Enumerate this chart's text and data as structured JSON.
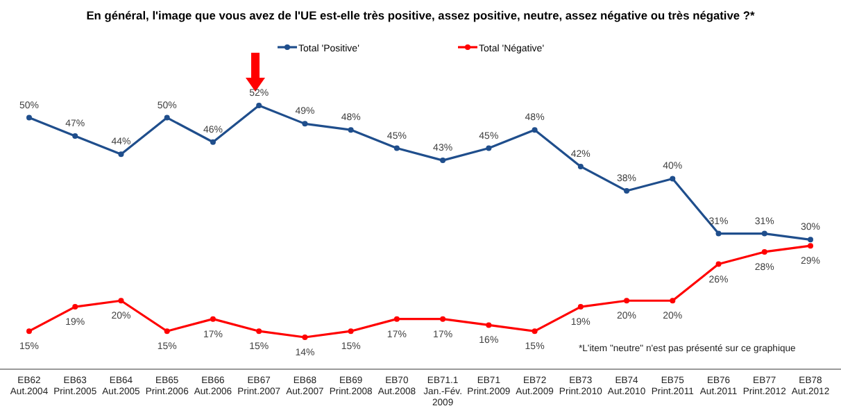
{
  "chart_data": {
    "type": "line",
    "title": "En général, l'image que vous avez de l'UE est-elle très positive, assez positive, neutre, assez négative ou très négative ?*",
    "categories": [
      "EB62\nAut.2004",
      "EB63\nPrint.2005",
      "EB64\nAut.2005",
      "EB65\nPrint.2006",
      "EB66\nAut.2006",
      "EB67\nPrint.2007",
      "EB68\nAut.2007",
      "EB69\nPrint.2008",
      "EB70\nAut.2008",
      "EB71.1\nJan.-Fév.\n2009",
      "EB71\nPrint.2009",
      "EB72\nAut.2009",
      "EB73\nPrint.2010",
      "EB74\nAut.2010",
      "EB75\nPrint.2011",
      "EB76\nAut.2011",
      "EB77\nPrint.2012",
      "EB78\nAut.2012"
    ],
    "series": [
      {
        "name": "Total 'Positive'",
        "color": "#1f4e8c",
        "values": [
          50,
          47,
          44,
          50,
          46,
          52,
          49,
          48,
          45,
          43,
          45,
          48,
          42,
          38,
          40,
          31,
          31,
          30
        ],
        "value_labels": [
          "50%",
          "47%",
          "44%",
          "50%",
          "46%",
          "52%",
          "49%",
          "48%",
          "45%",
          "43%",
          "45%",
          "48%",
          "42%",
          "38%",
          "40%",
          "31%",
          "31%",
          "30%"
        ]
      },
      {
        "name": "Total 'Négative'",
        "color": "#ff0000",
        "values": [
          15,
          19,
          20,
          15,
          17,
          15,
          14,
          15,
          17,
          17,
          16,
          15,
          19,
          20,
          20,
          26,
          28,
          29
        ],
        "value_labels": [
          "15%",
          "19%",
          "20%",
          "15%",
          "17%",
          "15%",
          "14%",
          "15%",
          "17%",
          "17%",
          "16%",
          "15%",
          "19%",
          "20%",
          "20%",
          "26%",
          "28%",
          "29%"
        ]
      }
    ],
    "legend": "top",
    "marker": "circle",
    "tick_labels": "x",
    "annotations": [
      "*L'item \"neutre\" n'est pas présenté sur ce graphique"
    ]
  }
}
